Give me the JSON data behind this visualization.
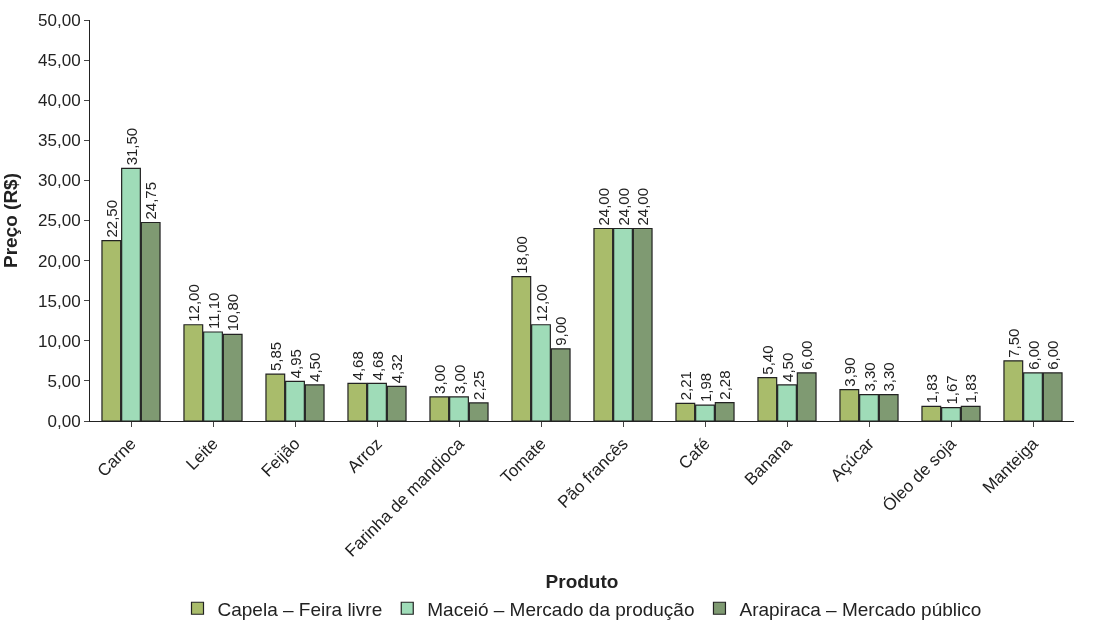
{
  "chart_data": {
    "type": "bar",
    "xlabel": "Produto",
    "ylabel": "Preço (R$)",
    "categories": [
      "Carne",
      "Leite",
      "Feijão",
      "Arroz",
      "Farinha de mandioca",
      "Tomate",
      "Pão francês",
      "Café",
      "Banana",
      "Açúcar",
      "Óleo de soja",
      "Manteiga"
    ],
    "series": [
      {
        "name": "Capela – Feira livre",
        "color": "#a9bc6b",
        "values": [
          22.5,
          12.0,
          5.85,
          4.68,
          3.0,
          18.0,
          24.0,
          2.21,
          5.4,
          3.9,
          1.83,
          7.5
        ],
        "value_labels": [
          "22,50",
          "12,00",
          "5,85",
          "4,68",
          "3,00",
          "18,00",
          "24,00",
          "2,21",
          "5,40",
          "3,90",
          "1,83",
          "7,50"
        ]
      },
      {
        "name": "Maceió – Mercado da produção",
        "color": "#9fdcb8",
        "values": [
          31.5,
          11.1,
          4.95,
          4.68,
          3.0,
          12.0,
          24.0,
          1.98,
          4.5,
          3.3,
          1.67,
          6.0
        ],
        "value_labels": [
          "31,50",
          "11,10",
          "4,95",
          "4,68",
          "3,00",
          "12,00",
          "24,00",
          "1,98",
          "4,50",
          "3,30",
          "1,67",
          "6,00"
        ]
      },
      {
        "name": "Arapiraca – Mercado público",
        "color": "#7f9a72",
        "values": [
          24.75,
          10.8,
          4.5,
          4.32,
          2.25,
          9.0,
          24.0,
          2.28,
          6.0,
          3.3,
          1.83,
          6.0
        ],
        "value_labels": [
          "24,75",
          "10,80",
          "4,50",
          "4,32",
          "2,25",
          "9,00",
          "24,00",
          "2,28",
          "6,00",
          "3,30",
          "1,83",
          "6,00"
        ]
      }
    ],
    "ylim": [
      0,
      50
    ],
    "yticks": [
      {
        "value": 0,
        "label": "0,00"
      },
      {
        "value": 5,
        "label": "5,00"
      },
      {
        "value": 10,
        "label": "10,00"
      },
      {
        "value": 15,
        "label": "15,00"
      },
      {
        "value": 20,
        "label": "20,00"
      },
      {
        "value": 25,
        "label": "25,00"
      },
      {
        "value": 30,
        "label": "30,00"
      },
      {
        "value": 35,
        "label": "35,00"
      },
      {
        "value": 40,
        "label": "40,00"
      },
      {
        "value": 45,
        "label": "45,00"
      },
      {
        "value": 50,
        "label": "50,00"
      }
    ],
    "legend": "bottom"
  }
}
